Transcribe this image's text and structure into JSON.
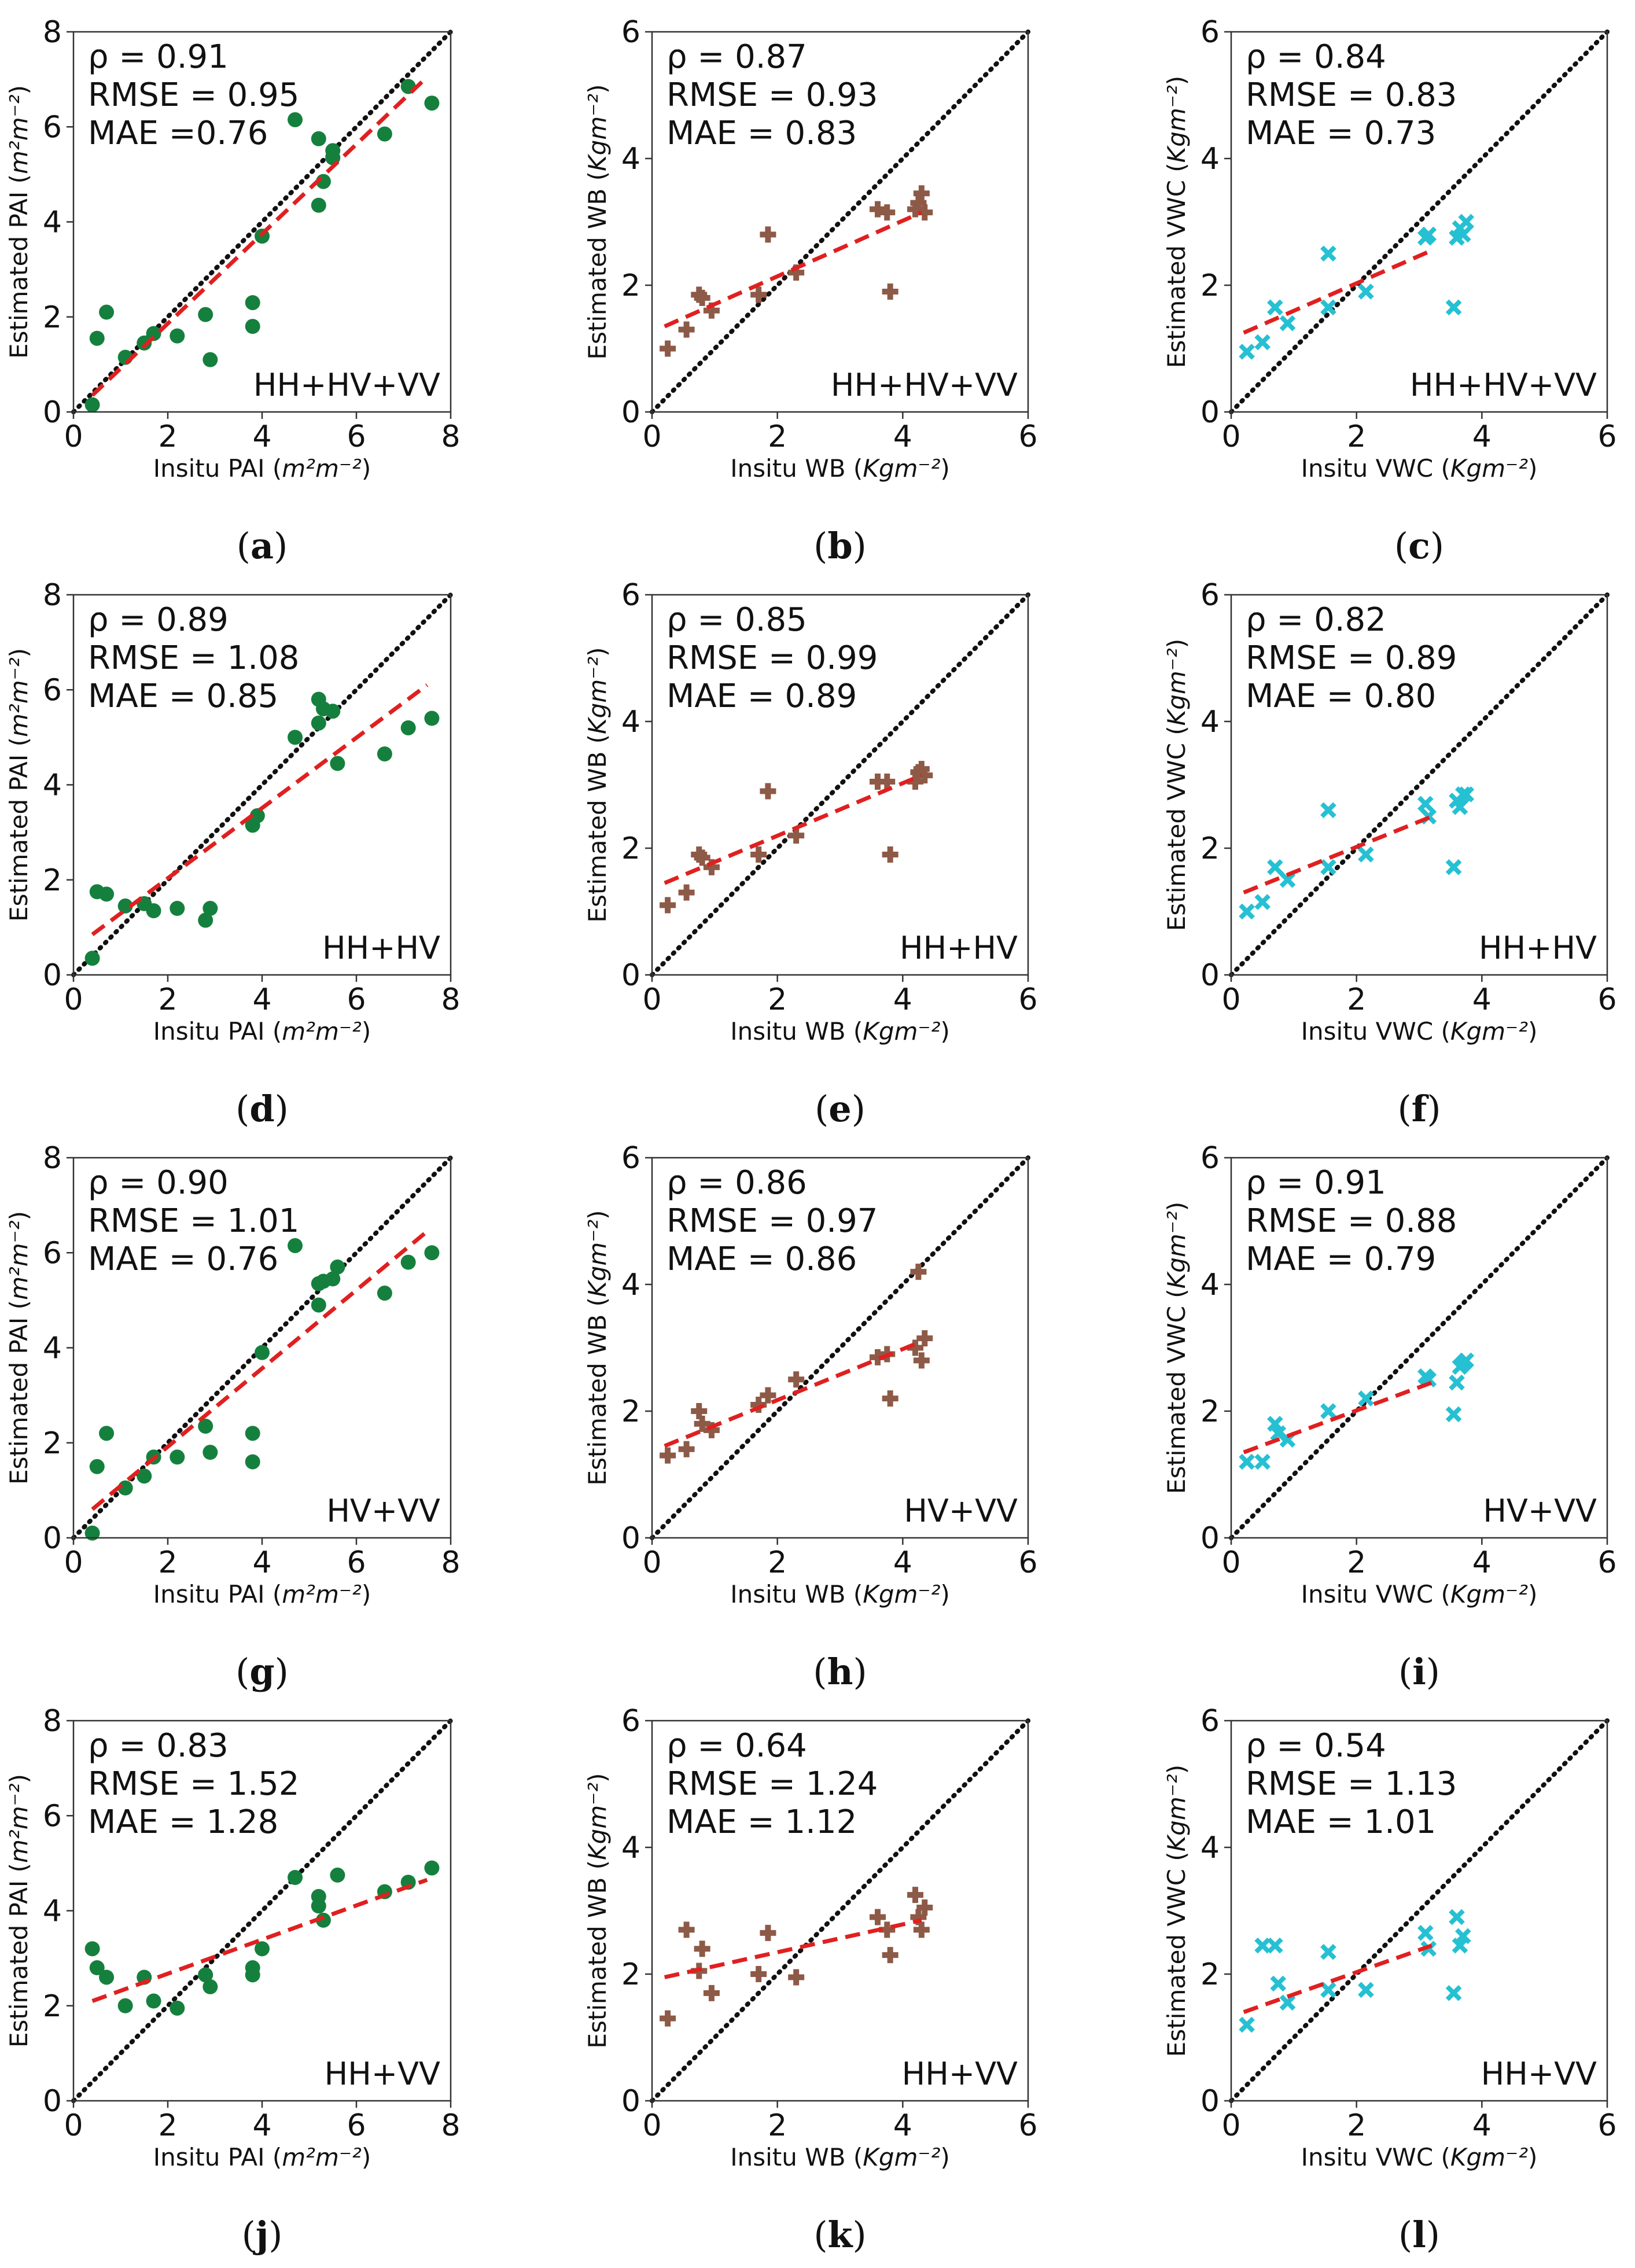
{
  "colors": {
    "pai": "#15803d",
    "wb": "#8d5a47",
    "vwc": "#26c0d3",
    "fit": "#e02020",
    "oneone": "#111111"
  },
  "chart_data": [
    {
      "id": "a",
      "type": "scatter",
      "variable": "PAI",
      "combo": "HH+HV+VV",
      "xlabel_main": "Insitu PAI (",
      "xlabel_unit": "m²m⁻²",
      "ylabel_main": "Estimated PAI (",
      "ylabel_unit": "m²m⁻²",
      "xlim": [
        0,
        8
      ],
      "ylim": [
        0,
        8
      ],
      "ticks": [
        0,
        2,
        4,
        6,
        8
      ],
      "stats": {
        "rho": "ρ = 0.91",
        "rmse": "RMSE = 0.95",
        "mae": "MAE =0.76"
      },
      "fit": [
        [
          0.4,
          0.35
        ],
        [
          7.5,
          7.05
        ]
      ],
      "x": [
        0.4,
        0.5,
        0.7,
        1.1,
        1.5,
        1.7,
        2.2,
        2.8,
        2.9,
        3.8,
        3.8,
        4.0,
        4.7,
        5.2,
        5.2,
        5.3,
        5.5,
        5.5,
        6.6,
        7.1,
        7.6
      ],
      "y": [
        0.15,
        1.55,
        2.1,
        1.15,
        1.45,
        1.65,
        1.6,
        2.05,
        1.1,
        2.3,
        1.8,
        3.7,
        6.15,
        5.75,
        4.35,
        4.85,
        5.35,
        5.5,
        5.85,
        6.85,
        6.5
      ]
    },
    {
      "id": "b",
      "type": "scatter",
      "variable": "WB",
      "combo": "HH+HV+VV",
      "xlabel_main": "Insitu WB (",
      "xlabel_unit": "Kgm⁻²",
      "ylabel_main": "Estimated WB (",
      "ylabel_unit": "Kgm⁻²",
      "xlim": [
        0,
        6
      ],
      "ylim": [
        0,
        6
      ],
      "ticks": [
        0,
        2,
        4,
        6
      ],
      "stats": {
        "rho": "ρ = 0.87",
        "rmse": "RMSE = 0.93",
        "mae": "MAE = 0.83"
      },
      "fit": [
        [
          0.2,
          1.35
        ],
        [
          4.3,
          3.15
        ]
      ],
      "x": [
        0.25,
        0.55,
        0.75,
        0.8,
        0.95,
        1.7,
        1.85,
        2.3,
        3.6,
        3.75,
        3.8,
        4.2,
        4.25,
        4.3,
        4.35
      ],
      "y": [
        1.0,
        1.3,
        1.85,
        1.8,
        1.6,
        1.85,
        2.8,
        2.2,
        3.2,
        3.15,
        1.9,
        3.2,
        3.3,
        3.45,
        3.15
      ]
    },
    {
      "id": "c",
      "type": "scatter",
      "variable": "VWC",
      "combo": "HH+HV+VV",
      "xlabel_main": "Insitu VWC (",
      "xlabel_unit": "Kgm⁻²",
      "ylabel_main": "Estimated VWC (",
      "ylabel_unit": "Kgm⁻²",
      "xlim": [
        0,
        6
      ],
      "ylim": [
        0,
        6
      ],
      "ticks": [
        0,
        2,
        4,
        6
      ],
      "stats": {
        "rho": "ρ = 0.84",
        "rmse": "RMSE = 0.83",
        "mae": "MAE = 0.73"
      },
      "fit": [
        [
          0.2,
          1.25
        ],
        [
          3.2,
          2.55
        ]
      ],
      "x": [
        0.25,
        0.5,
        0.7,
        0.9,
        1.55,
        1.55,
        2.15,
        3.1,
        3.15,
        3.55,
        3.6,
        3.65,
        3.7,
        3.75
      ],
      "y": [
        0.95,
        1.1,
        1.65,
        1.4,
        2.5,
        1.65,
        1.9,
        2.75,
        2.8,
        1.65,
        2.75,
        2.9,
        2.8,
        3.0
      ]
    },
    {
      "id": "d",
      "type": "scatter",
      "variable": "PAI",
      "combo": "HH+HV",
      "xlabel_main": "Insitu PAI (",
      "xlabel_unit": "m²m⁻²",
      "ylabel_main": "Estimated PAI (",
      "ylabel_unit": "m²m⁻²",
      "xlim": [
        0,
        8
      ],
      "ylim": [
        0,
        8
      ],
      "ticks": [
        0,
        2,
        4,
        6,
        8
      ],
      "stats": {
        "rho": "ρ = 0.89",
        "rmse": "RMSE = 1.08",
        "mae": "MAE = 0.85"
      },
      "fit": [
        [
          0.4,
          0.85
        ],
        [
          7.5,
          6.1
        ]
      ],
      "x": [
        0.4,
        0.5,
        0.7,
        1.1,
        1.5,
        1.7,
        2.2,
        2.8,
        2.9,
        3.8,
        3.9,
        4.7,
        5.2,
        5.2,
        5.3,
        5.5,
        5.6,
        6.6,
        7.1,
        7.6
      ],
      "y": [
        0.35,
        1.75,
        1.7,
        1.45,
        1.5,
        1.35,
        1.4,
        1.15,
        1.4,
        3.15,
        3.35,
        5.0,
        5.8,
        5.3,
        5.6,
        5.55,
        4.45,
        4.65,
        5.2,
        5.4
      ]
    },
    {
      "id": "e",
      "type": "scatter",
      "variable": "WB",
      "combo": "HH+HV",
      "xlabel_main": "Insitu WB (",
      "xlabel_unit": "Kgm⁻²",
      "ylabel_main": "Estimated WB (",
      "ylabel_unit": "Kgm⁻²",
      "xlim": [
        0,
        6
      ],
      "ylim": [
        0,
        6
      ],
      "ticks": [
        0,
        2,
        4,
        6
      ],
      "stats": {
        "rho": "ρ = 0.85",
        "rmse": "RMSE = 0.99",
        "mae": "MAE = 0.89"
      },
      "fit": [
        [
          0.2,
          1.45
        ],
        [
          4.3,
          3.15
        ]
      ],
      "x": [
        0.25,
        0.55,
        0.75,
        0.8,
        0.95,
        1.7,
        1.85,
        2.3,
        3.6,
        3.75,
        3.8,
        4.2,
        4.25,
        4.3,
        4.35
      ],
      "y": [
        1.1,
        1.3,
        1.9,
        1.85,
        1.7,
        1.9,
        2.9,
        2.2,
        3.05,
        3.05,
        1.9,
        3.05,
        3.2,
        3.25,
        3.15
      ]
    },
    {
      "id": "f",
      "type": "scatter",
      "variable": "VWC",
      "combo": "HH+HV",
      "xlabel_main": "Insitu VWC (",
      "xlabel_unit": "Kgm⁻²",
      "ylabel_main": "Estimated VWC (",
      "ylabel_unit": "Kgm⁻²",
      "xlim": [
        0,
        6
      ],
      "ylim": [
        0,
        6
      ],
      "ticks": [
        0,
        2,
        4,
        6
      ],
      "stats": {
        "rho": "ρ = 0.82",
        "rmse": "RMSE = 0.89",
        "mae": "MAE = 0.80"
      },
      "fit": [
        [
          0.2,
          1.3
        ],
        [
          3.2,
          2.5
        ]
      ],
      "x": [
        0.25,
        0.5,
        0.7,
        0.9,
        1.55,
        1.55,
        2.15,
        3.1,
        3.15,
        3.55,
        3.6,
        3.65,
        3.7,
        3.75
      ],
      "y": [
        1.0,
        1.15,
        1.7,
        1.5,
        2.6,
        1.7,
        1.9,
        2.7,
        2.5,
        1.7,
        2.75,
        2.65,
        2.85,
        2.85
      ]
    },
    {
      "id": "g",
      "type": "scatter",
      "variable": "PAI",
      "combo": "HV+VV",
      "xlabel_main": "Insitu PAI (",
      "xlabel_unit": "m²m⁻²",
      "ylabel_main": "Estimated PAI (",
      "ylabel_unit": "m²m⁻²",
      "xlim": [
        0,
        8
      ],
      "ylim": [
        0,
        8
      ],
      "ticks": [
        0,
        2,
        4,
        6,
        8
      ],
      "stats": {
        "rho": "ρ = 0.90",
        "rmse": "RMSE = 1.01",
        "mae": "MAE = 0.76"
      },
      "fit": [
        [
          0.4,
          0.6
        ],
        [
          7.5,
          6.45
        ]
      ],
      "x": [
        0.4,
        0.5,
        0.7,
        1.1,
        1.5,
        1.7,
        2.2,
        2.8,
        2.9,
        3.8,
        3.8,
        4.0,
        4.7,
        5.2,
        5.2,
        5.3,
        5.5,
        5.6,
        6.6,
        7.1,
        7.6
      ],
      "y": [
        0.1,
        1.5,
        2.2,
        1.05,
        1.3,
        1.7,
        1.7,
        2.35,
        1.8,
        2.2,
        1.6,
        3.9,
        6.15,
        5.35,
        4.9,
        5.4,
        5.45,
        5.7,
        5.15,
        5.8,
        6.0
      ]
    },
    {
      "id": "h",
      "type": "scatter",
      "variable": "WB",
      "combo": "HV+VV",
      "xlabel_main": "Insitu WB (",
      "xlabel_unit": "Kgm⁻²",
      "ylabel_main": "Estimated WB (",
      "ylabel_unit": "Kgm⁻²",
      "xlim": [
        0,
        6
      ],
      "ylim": [
        0,
        6
      ],
      "ticks": [
        0,
        2,
        4,
        6
      ],
      "stats": {
        "rho": "ρ = 0.86",
        "rmse": "RMSE = 0.97",
        "mae": "MAE = 0.86"
      },
      "fit": [
        [
          0.2,
          1.45
        ],
        [
          4.3,
          3.1
        ]
      ],
      "x": [
        0.25,
        0.55,
        0.75,
        0.8,
        0.95,
        1.7,
        1.85,
        2.3,
        3.6,
        3.75,
        3.8,
        4.2,
        4.25,
        4.3,
        4.35
      ],
      "y": [
        1.3,
        1.4,
        2.0,
        1.8,
        1.7,
        2.1,
        2.25,
        2.5,
        2.85,
        2.9,
        2.2,
        3.0,
        4.2,
        2.8,
        3.15
      ]
    },
    {
      "id": "i",
      "type": "scatter",
      "variable": "VWC",
      "combo": "HV+VV",
      "xlabel_main": "Insitu VWC (",
      "xlabel_unit": "Kgm⁻²",
      "ylabel_main": "Estimated VWC (",
      "ylabel_unit": "Kgm⁻²",
      "xlim": [
        0,
        6
      ],
      "ylim": [
        0,
        6
      ],
      "ticks": [
        0,
        2,
        4,
        6
      ],
      "stats": {
        "rho": "ρ = 0.91",
        "rmse": "RMSE = 0.88",
        "mae": "MAE = 0.79"
      },
      "fit": [
        [
          0.2,
          1.35
        ],
        [
          3.2,
          2.45
        ]
      ],
      "x": [
        0.25,
        0.5,
        0.7,
        0.75,
        0.9,
        1.55,
        2.15,
        3.1,
        3.15,
        3.55,
        3.6,
        3.65,
        3.7,
        3.75
      ],
      "y": [
        1.2,
        1.2,
        1.8,
        1.65,
        1.55,
        2.0,
        2.2,
        2.55,
        2.5,
        1.95,
        2.45,
        2.7,
        2.75,
        2.8
      ]
    },
    {
      "id": "j",
      "type": "scatter",
      "variable": "PAI",
      "combo": "HH+VV",
      "xlabel_main": "Insitu PAI (",
      "xlabel_unit": "m²m⁻²",
      "ylabel_main": "Estimated PAI (",
      "ylabel_unit": "m²m⁻²",
      "xlim": [
        0,
        8
      ],
      "ylim": [
        0,
        8
      ],
      "ticks": [
        0,
        2,
        4,
        6,
        8
      ],
      "stats": {
        "rho": "ρ = 0.83",
        "rmse": "RMSE = 1.52",
        "mae": "MAE = 1.28"
      },
      "fit": [
        [
          0.4,
          2.1
        ],
        [
          7.5,
          4.65
        ]
      ],
      "x": [
        0.4,
        0.5,
        0.7,
        1.1,
        1.5,
        1.7,
        2.2,
        2.8,
        2.9,
        3.8,
        3.8,
        4.0,
        4.7,
        5.2,
        5.2,
        5.3,
        5.6,
        6.6,
        7.1,
        7.6
      ],
      "y": [
        3.2,
        2.8,
        2.6,
        2.0,
        2.6,
        2.1,
        1.95,
        2.65,
        2.4,
        2.8,
        2.65,
        3.2,
        4.7,
        4.3,
        4.1,
        3.8,
        4.75,
        4.4,
        4.6,
        4.9
      ]
    },
    {
      "id": "k",
      "type": "scatter",
      "variable": "WB",
      "combo": "HH+VV",
      "xlabel_main": "Insitu WB (",
      "xlabel_unit": "Kgm⁻²",
      "ylabel_main": "Estimated WB (",
      "ylabel_unit": "Kgm⁻²",
      "xlim": [
        0,
        6
      ],
      "ylim": [
        0,
        6
      ],
      "ticks": [
        0,
        2,
        4,
        6
      ],
      "stats": {
        "rho": "ρ = 0.64",
        "rmse": "RMSE = 1.24",
        "mae": "MAE = 1.12"
      },
      "fit": [
        [
          0.2,
          1.95
        ],
        [
          4.3,
          2.85
        ]
      ],
      "x": [
        0.25,
        0.55,
        0.75,
        0.8,
        0.95,
        1.7,
        1.85,
        2.3,
        3.6,
        3.75,
        3.8,
        4.2,
        4.25,
        4.3,
        4.35
      ],
      "y": [
        1.3,
        2.7,
        2.05,
        2.4,
        1.7,
        2.0,
        2.65,
        1.95,
        2.9,
        2.7,
        2.3,
        3.25,
        2.9,
        2.7,
        3.05
      ]
    },
    {
      "id": "l",
      "type": "scatter",
      "variable": "VWC",
      "combo": "HH+VV",
      "xlabel_main": "Insitu VWC (",
      "xlabel_unit": "Kgm⁻²",
      "ylabel_main": "Estimated VWC (",
      "ylabel_unit": "Kgm⁻²",
      "xlim": [
        0,
        6
      ],
      "ylim": [
        0,
        6
      ],
      "ticks": [
        0,
        2,
        4,
        6
      ],
      "stats": {
        "rho": "ρ = 0.54",
        "rmse": "RMSE = 1.13",
        "mae": "MAE = 1.01"
      },
      "fit": [
        [
          0.2,
          1.4
        ],
        [
          3.2,
          2.45
        ]
      ],
      "x": [
        0.25,
        0.5,
        0.7,
        0.75,
        0.9,
        1.55,
        1.55,
        2.15,
        3.1,
        3.15,
        3.55,
        3.6,
        3.65,
        3.7
      ],
      "y": [
        1.2,
        2.45,
        2.45,
        1.85,
        1.55,
        2.35,
        1.75,
        1.75,
        2.65,
        2.4,
        1.7,
        2.9,
        2.45,
        2.6
      ]
    }
  ]
}
